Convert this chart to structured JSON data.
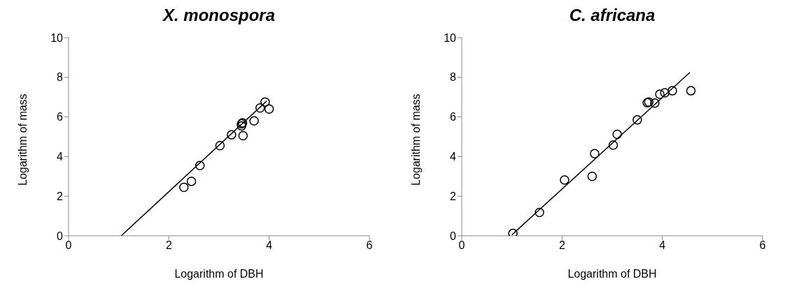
{
  "chart_data": [
    {
      "type": "scatter",
      "title": "X. monospora",
      "xlabel": "Logarithm of DBH",
      "ylabel": "Logarithm of mass",
      "xlim": [
        0,
        6
      ],
      "xticks": [
        0,
        2,
        4,
        6
      ],
      "ylim": [
        0,
        10
      ],
      "yticks": [
        0,
        2,
        4,
        6,
        8,
        10
      ],
      "grid": false,
      "series": [
        {
          "marker": "circle",
          "color": "#000000",
          "x": [
            2.3,
            2.45,
            2.62,
            3.02,
            3.25,
            3.45,
            3.45,
            3.47,
            3.48,
            3.7,
            3.82,
            3.92,
            4.0
          ],
          "values": [
            2.45,
            2.75,
            3.55,
            4.55,
            5.1,
            5.55,
            5.65,
            5.7,
            5.05,
            5.8,
            6.45,
            6.75,
            6.4
          ]
        },
        {
          "type": "line",
          "color": "#000000",
          "x": [
            1.05,
            3.95
          ],
          "values": [
            0,
            6.8
          ]
        }
      ]
    },
    {
      "type": "scatter",
      "title": "C. africana",
      "xlabel": "Logarithm of DBH",
      "ylabel": "Logarithm of mass",
      "xlim": [
        0,
        6
      ],
      "xticks": [
        0,
        2,
        4,
        6
      ],
      "ylim": [
        0,
        10
      ],
      "yticks": [
        0,
        2,
        4,
        6,
        8,
        10
      ],
      "grid": false,
      "series": [
        {
          "marker": "circle",
          "color": "#000000",
          "x": [
            1.02,
            1.55,
            2.05,
            2.6,
            2.65,
            3.02,
            3.1,
            3.5,
            3.7,
            3.73,
            3.85,
            3.95,
            4.05,
            4.2,
            4.57
          ],
          "values": [
            0.12,
            1.18,
            2.82,
            3.0,
            4.15,
            4.58,
            5.12,
            5.85,
            6.72,
            6.75,
            6.7,
            7.15,
            7.22,
            7.32,
            7.32
          ]
        },
        {
          "type": "line",
          "color": "#000000",
          "x": [
            1.0,
            4.55
          ],
          "values": [
            0.05,
            8.25
          ]
        }
      ]
    }
  ]
}
